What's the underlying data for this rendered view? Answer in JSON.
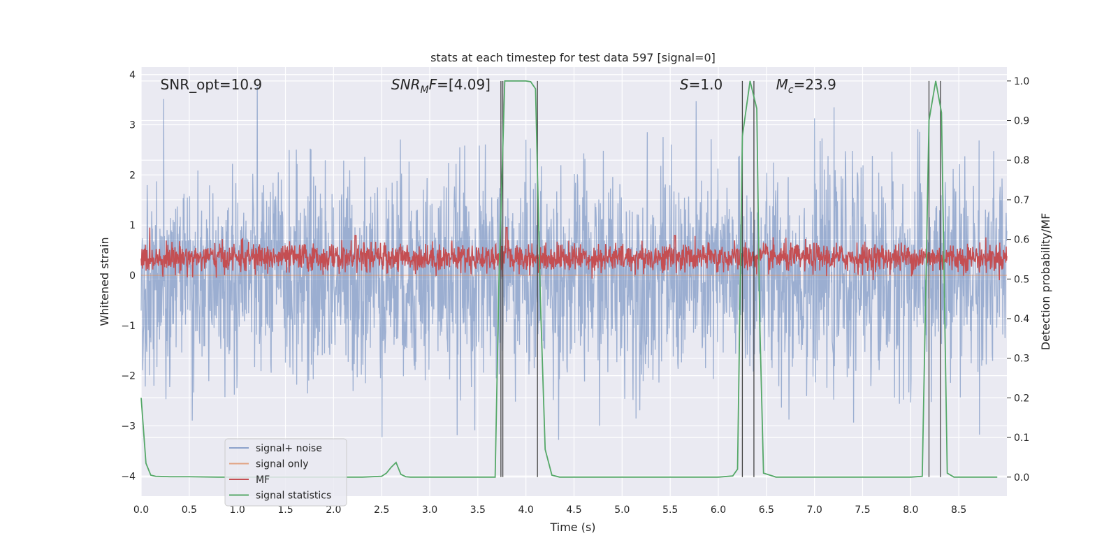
{
  "chart_data": {
    "type": "line",
    "title": "stats at each timestep for test data 597 [signal=0]",
    "xlabel": "Time (s)",
    "ylabel": "Whitened strain",
    "y2label": "Detection probability/MF",
    "xlim": [
      0.0,
      9.0
    ],
    "ylim": [
      -4.4,
      4.15
    ],
    "y2lim": [
      -0.048,
      1.035
    ],
    "xticks": [
      0.0,
      0.5,
      1.0,
      1.5,
      2.0,
      2.5,
      3.0,
      3.5,
      4.0,
      4.5,
      5.0,
      5.5,
      6.0,
      6.5,
      7.0,
      7.5,
      8.0,
      8.5
    ],
    "xtick_labels": [
      "0.0",
      "0.5",
      "1.0",
      "1.5",
      "2.0",
      "2.5",
      "3.0",
      "3.5",
      "4.0",
      "4.5",
      "5.0",
      "5.5",
      "6.0",
      "6.5",
      "7.0",
      "7.5",
      "8.0",
      "8.5"
    ],
    "yticks": [
      -4,
      -3,
      -2,
      -1,
      0,
      1,
      2,
      3,
      4
    ],
    "ytick_labels": [
      "−4",
      "−3",
      "−2",
      "−1",
      "0",
      "1",
      "2",
      "3",
      "4"
    ],
    "y2ticks": [
      0.0,
      0.1,
      0.2,
      0.3,
      0.4,
      0.5,
      0.6,
      0.7,
      0.8,
      0.9,
      1.0
    ],
    "y2tick_labels": [
      "0.0",
      "0.1",
      "0.2",
      "0.3",
      "0.4",
      "0.5",
      "0.6",
      "0.7",
      "0.8",
      "0.9",
      "1.0"
    ],
    "grid": true,
    "legend_position": "lower-left",
    "annotations": [
      {
        "text": "SNR_opt=10.9",
        "x": 0.2,
        "y": 3.8
      },
      {
        "text": "SNR_MF=[4.09]",
        "x": 2.6,
        "y": 3.8,
        "main": "SNR",
        "sub": "M",
        "after": "F=[4.09]"
      },
      {
        "text": "S=1.0",
        "x": 5.6,
        "y": 3.8,
        "main": "S",
        "sub": "",
        "after": "=1.0"
      },
      {
        "text": "M_c=23.9",
        "x": 6.6,
        "y": 3.8,
        "main": "M",
        "sub": "c",
        "after": "=23.9"
      }
    ],
    "series": [
      {
        "name": "signal+ noise",
        "axis": "left",
        "color": "#4c72b0",
        "alpha": 0.5,
        "sample_rate_hz": 256,
        "noise_std": 1.0,
        "x_range": [
          0.0,
          9.0
        ],
        "y_range": [
          -3.4,
          3.8
        ]
      },
      {
        "name": "signal only",
        "axis": "left",
        "color": "#dd8452",
        "alpha": 0.5,
        "x": [
          0.0,
          9.0
        ],
        "y": [
          0.0,
          0.0
        ]
      },
      {
        "name": "MF",
        "axis": "right",
        "color": "#c44e52",
        "sample_rate_hz": 256,
        "x_range": [
          0.0,
          9.0
        ],
        "y_range": [
          0.5,
          0.62
        ],
        "peaks": [
          {
            "x": 2.23,
            "y": 0.61
          },
          {
            "x": 3.8,
            "y": 0.63
          },
          {
            "x": 5.55,
            "y": 0.61
          }
        ]
      },
      {
        "name": "signal statistics",
        "axis": "right",
        "color": "#55a868",
        "x": [
          0.0,
          0.05,
          0.1,
          0.15,
          0.3,
          0.5,
          0.8,
          1.0,
          1.5,
          2.0,
          2.3,
          2.5,
          2.55,
          2.6,
          2.65,
          2.7,
          2.75,
          2.8,
          2.85,
          3.0,
          3.3,
          3.5,
          3.68,
          3.72,
          3.78,
          3.82,
          3.9,
          4.0,
          4.05,
          4.1,
          4.15,
          4.2,
          4.27,
          4.35,
          4.5,
          5.0,
          5.5,
          6.0,
          6.15,
          6.2,
          6.25,
          6.33,
          6.4,
          6.43,
          6.47,
          6.6,
          7.0,
          7.5,
          8.0,
          8.12,
          8.19,
          8.26,
          8.32,
          8.38,
          8.45,
          8.6,
          8.9
        ],
        "y": [
          0.2,
          0.035,
          0.005,
          0.002,
          0.001,
          0.001,
          0.0,
          0.0,
          0.0,
          0.0,
          0.0,
          0.002,
          0.01,
          0.025,
          0.037,
          0.007,
          0.001,
          0.0,
          0.0,
          0.0,
          0.0,
          0.0,
          0.0,
          0.5,
          1.0,
          1.0,
          1.0,
          1.0,
          0.998,
          0.98,
          0.45,
          0.07,
          0.005,
          0.0,
          0.0,
          0.0,
          0.0,
          0.0,
          0.003,
          0.02,
          0.86,
          1.0,
          0.93,
          0.4,
          0.01,
          0.0,
          0.0,
          0.0,
          0.0,
          0.002,
          0.9,
          1.0,
          0.92,
          0.01,
          0.0,
          0.0,
          0.0
        ]
      }
    ],
    "vertical_markers": [
      3.74,
      3.76,
      4.12,
      6.25,
      6.37,
      8.19,
      8.31
    ]
  }
}
